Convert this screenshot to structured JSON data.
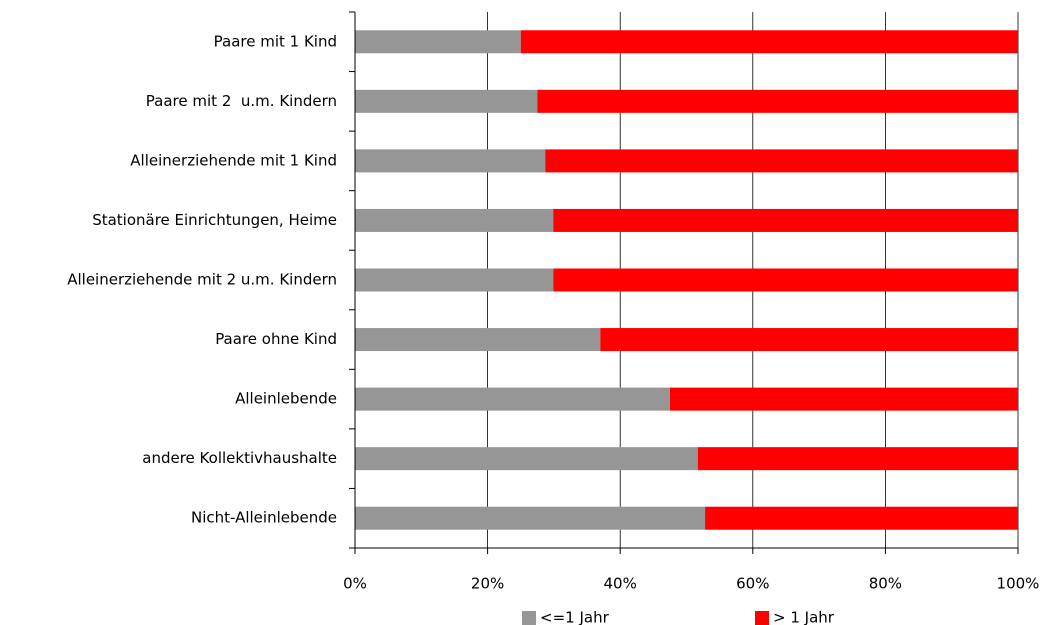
{
  "chart_data": {
    "type": "stacked_barh",
    "categories": [
      "Paare mit 1 Kind",
      "Paare mit 2  u.m. Kindern",
      "Alleinerziehende mit 1 Kind",
      "Stationäre Einrichtungen, Heime",
      "Alleinerziehende mit 2 u.m. Kindern",
      "Paare ohne Kind",
      "Alleinlebende",
      "andere Kollektivhaushalte",
      "Nicht-Alleinlebende"
    ],
    "series": [
      {
        "name": "<=1 Jahr",
        "color": "#969696",
        "values": [
          25.0,
          27.5,
          28.7,
          29.9,
          29.9,
          37.0,
          47.5,
          51.7,
          52.8
        ]
      },
      {
        "name": "> 1 Jahr",
        "color": "#ff0000",
        "values": [
          75.0,
          72.5,
          71.3,
          70.1,
          70.1,
          63.0,
          52.5,
          48.3,
          47.2
        ]
      }
    ],
    "xlim": [
      0,
      100
    ],
    "xticks": [
      {
        "value": 0,
        "label": "0%"
      },
      {
        "value": 20,
        "label": "20%"
      },
      {
        "value": 40,
        "label": "40%"
      },
      {
        "value": 60,
        "label": "60%"
      },
      {
        "value": 80,
        "label": "80%"
      },
      {
        "value": 100,
        "label": "100%"
      }
    ],
    "grid": true,
    "legend": "bottom"
  }
}
